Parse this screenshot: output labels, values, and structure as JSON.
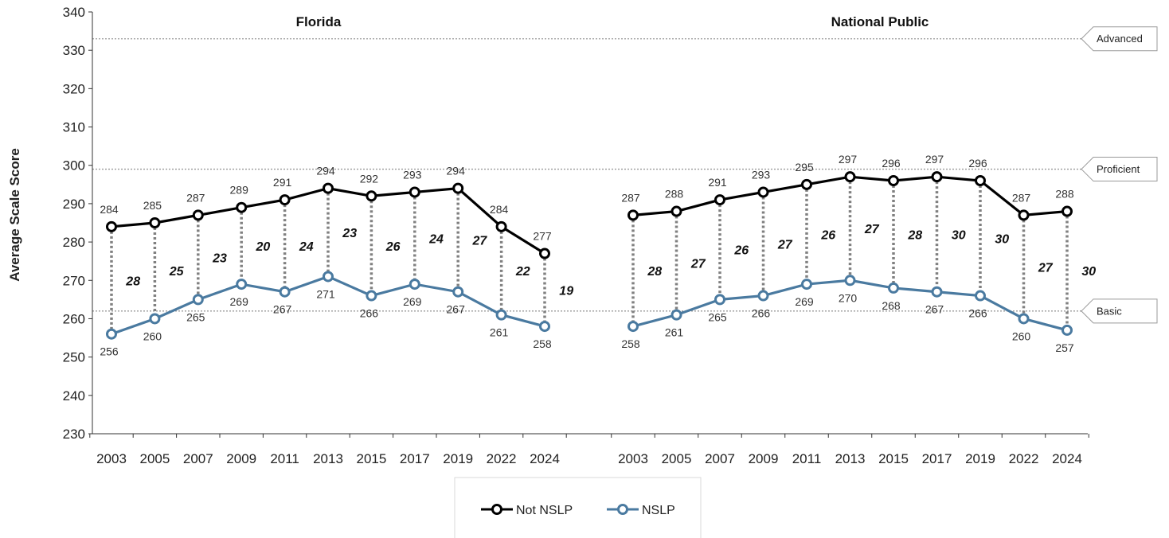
{
  "chart_data": {
    "type": "line",
    "ylabel": "Average Scale Score",
    "ylim": [
      230,
      340
    ],
    "ytick_step": 10,
    "grid": false,
    "legend_position": "bottom-center",
    "achievement_levels": [
      {
        "label": "Advanced",
        "value": 333
      },
      {
        "label": "Proficient",
        "value": 299
      },
      {
        "label": "Basic",
        "value": 262
      }
    ],
    "series_names": [
      "Not NSLP",
      "NSLP"
    ],
    "colors": {
      "not_nslp": "#000000",
      "nslp": "#4a7aa0",
      "connector": "#808080",
      "reference": "#999999"
    },
    "panels": [
      {
        "title": "Florida",
        "categories": [
          "2003",
          "2005",
          "2007",
          "2009",
          "2011",
          "2013",
          "2015",
          "2017",
          "2019",
          "2022",
          "2024"
        ],
        "series": [
          {
            "name": "Not NSLP",
            "values": [
              284,
              285,
              287,
              289,
              291,
              294,
              292,
              293,
              294,
              284,
              277
            ]
          },
          {
            "name": "NSLP",
            "values": [
              256,
              260,
              265,
              269,
              267,
              271,
              266,
              269,
              267,
              261,
              258
            ]
          }
        ],
        "gaps": [
          28,
          25,
          23,
          20,
          24,
          23,
          26,
          24,
          27,
          22,
          19
        ]
      },
      {
        "title": "National Public",
        "categories": [
          "2003",
          "2005",
          "2007",
          "2009",
          "2011",
          "2013",
          "2015",
          "2017",
          "2019",
          "2022",
          "2024"
        ],
        "series": [
          {
            "name": "Not NSLP",
            "values": [
              287,
              288,
              291,
              293,
              295,
              297,
              296,
              297,
              296,
              287,
              288
            ]
          },
          {
            "name": "NSLP",
            "values": [
              258,
              261,
              265,
              266,
              269,
              270,
              268,
              267,
              266,
              260,
              257
            ]
          }
        ],
        "gaps": [
          28,
          27,
          26,
          27,
          26,
          27,
          28,
          30,
          30,
          27,
          30
        ]
      }
    ]
  }
}
